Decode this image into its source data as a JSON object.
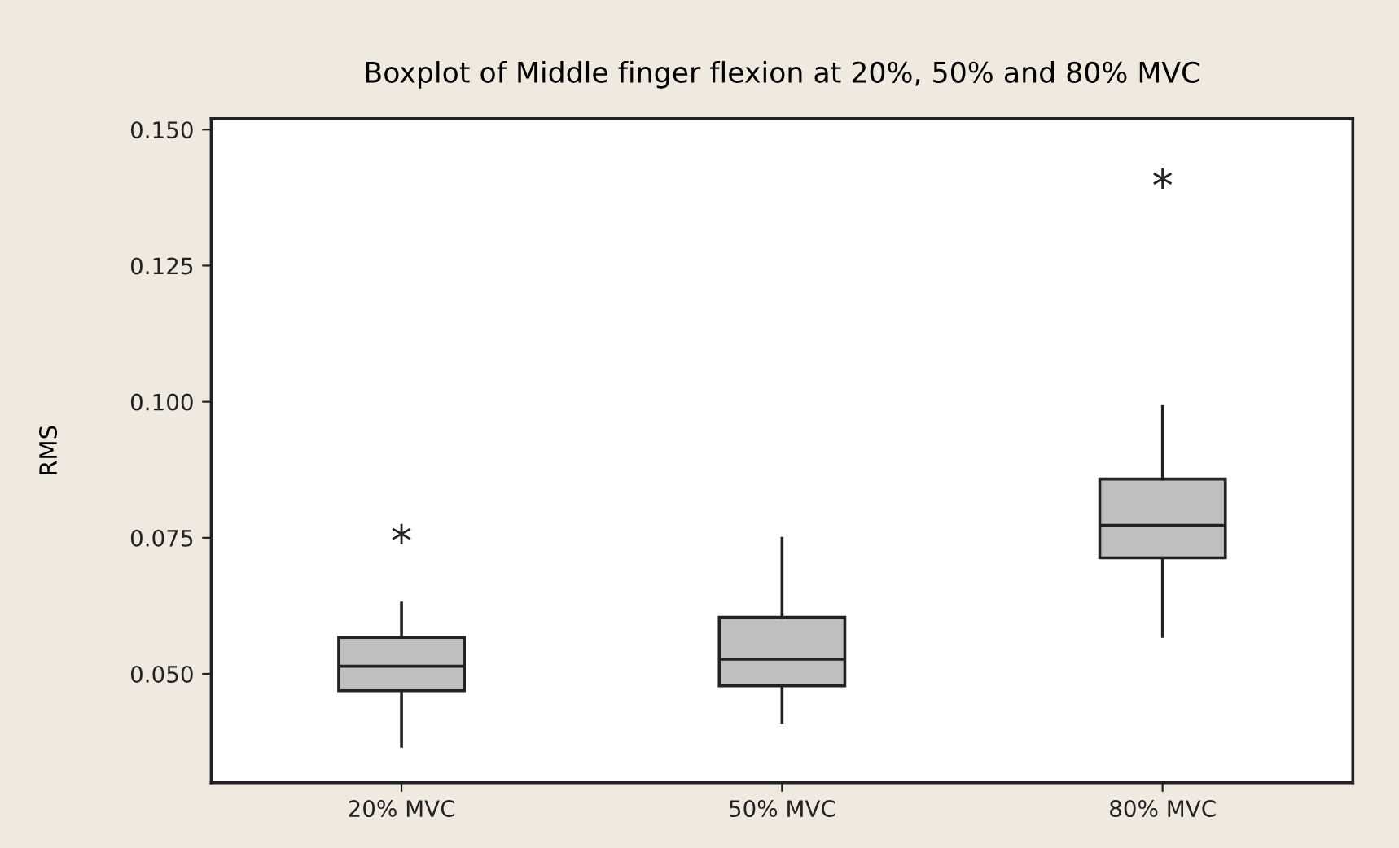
{
  "chart_data": {
    "type": "box",
    "title": "Boxplot of Middle finger flexion at 20%, 50% and 80% MVC",
    "ylabel": "RMS",
    "categories": [
      "20% MVC",
      "50% MVC",
      "80% MVC"
    ],
    "color": "#c0c0c0",
    "boxes": [
      {
        "low": 0.0367,
        "q1": 0.0469,
        "median": 0.0514,
        "q3": 0.0567,
        "high": 0.063,
        "outliers": [
          0.0757
        ]
      },
      {
        "low": 0.041,
        "q1": 0.0478,
        "median": 0.0527,
        "q3": 0.0604,
        "high": 0.0749
      },
      {
        "low": 0.0569,
        "q1": 0.0713,
        "median": 0.0773,
        "q3": 0.0858,
        "high": 0.0991,
        "outliers": [
          0.141
        ]
      }
    ],
    "ylim": [
      0.03,
      0.152
    ],
    "yticks": [
      {
        "value": 0.05,
        "label": "0.050"
      },
      {
        "value": 0.075,
        "label": "0.075"
      },
      {
        "value": 0.1,
        "label": "0.100"
      },
      {
        "value": 0.125,
        "label": "0.125"
      },
      {
        "value": 0.15,
        "label": "0.150"
      }
    ],
    "grid": false
  }
}
